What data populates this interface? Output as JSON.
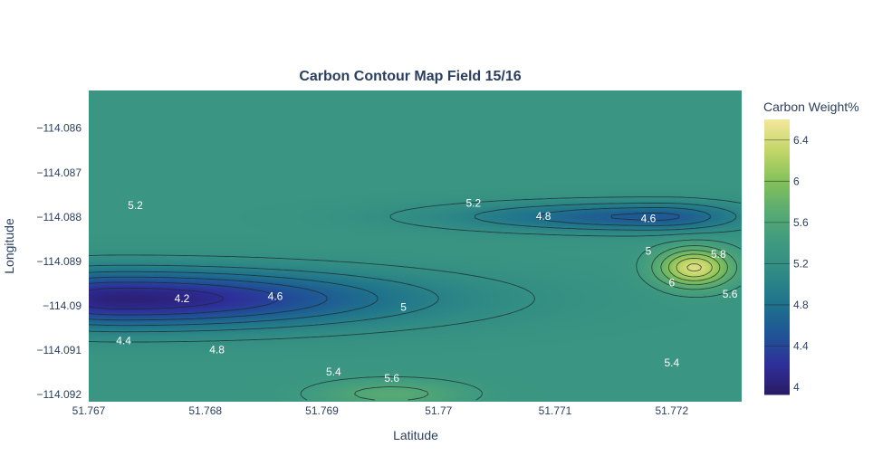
{
  "chart_data": {
    "type": "contour",
    "title": "Carbon Contour Map Field 15/16",
    "xlabel": "Latitude",
    "ylabel": "Longitude",
    "xlim": [
      51.767,
      51.7726
    ],
    "ylim": [
      -114.09216,
      -114.08515
    ],
    "x_ticks": [
      {
        "value": 51.767,
        "label": "51.767"
      },
      {
        "value": 51.768,
        "label": "51.768"
      },
      {
        "value": 51.769,
        "label": "51.769"
      },
      {
        "value": 51.77,
        "label": "51.77"
      },
      {
        "value": 51.771,
        "label": "51.771"
      },
      {
        "value": 51.772,
        "label": "51.772"
      }
    ],
    "y_ticks": [
      {
        "value": -114.086,
        "label": "−114.086"
      },
      {
        "value": -114.087,
        "label": "−114.087"
      },
      {
        "value": -114.088,
        "label": "−114.088"
      },
      {
        "value": -114.089,
        "label": "−114.089"
      },
      {
        "value": -114.09,
        "label": "−114.09"
      },
      {
        "value": -114.091,
        "label": "−114.091"
      },
      {
        "value": -114.092,
        "label": "−114.092"
      }
    ],
    "colorbar": {
      "title": "Carbon Weight%",
      "range": [
        3.93,
        6.6
      ],
      "ticks": [
        {
          "value": 4,
          "label": "4"
        },
        {
          "value": 4.4,
          "label": "4.4"
        },
        {
          "value": 4.8,
          "label": "4.8"
        },
        {
          "value": 5.2,
          "label": "5.2"
        },
        {
          "value": 5.6,
          "label": "5.6"
        },
        {
          "value": 6,
          "label": "6"
        },
        {
          "value": 6.4,
          "label": "6.4"
        }
      ],
      "colors": [
        "#2a1a67",
        "#2e2f9a",
        "#1f5596",
        "#1f738c",
        "#2f8a85",
        "#3f9a80",
        "#59ab72",
        "#84c159",
        "#c3d669",
        "#f3e79b"
      ]
    },
    "contour_levels": [
      4.0,
      4.2,
      4.4,
      4.6,
      4.8,
      5.0,
      5.2,
      5.4,
      5.6,
      5.8,
      6.0,
      6.2,
      6.4
    ],
    "background_value": 5.32,
    "features": [
      {
        "name": "low-west",
        "x": 51.7673,
        "y": -114.08985,
        "value": 4.03,
        "sx": 0.0009,
        "sy": 0.00045,
        "stretch_east": 1.8
      },
      {
        "name": "low-north",
        "x": 51.7719,
        "y": -114.088,
        "value": 4.55,
        "sx": 0.0005,
        "sy": 0.00023,
        "stretch_west": 2.4
      },
      {
        "name": "high-east",
        "x": 51.7722,
        "y": -114.08915,
        "value": 6.45,
        "sx": 0.00022,
        "sy": 0.0003
      },
      {
        "name": "high-south",
        "x": 51.7696,
        "y": -114.092,
        "value": 5.68,
        "sx": 0.00045,
        "sy": 0.00022
      }
    ],
    "contour_labels": [
      {
        "text": "5.2",
        "x": 51.7674,
        "y": -114.08775
      },
      {
        "text": "4.2",
        "x": 51.7678,
        "y": -114.08985
      },
      {
        "text": "4.6",
        "x": 51.7686,
        "y": -114.0898
      },
      {
        "text": "4.4",
        "x": 51.7673,
        "y": -114.0908
      },
      {
        "text": "4.8",
        "x": 51.7681,
        "y": -114.091
      },
      {
        "text": "5.4",
        "x": 51.7691,
        "y": -114.0915
      },
      {
        "text": "5.6",
        "x": 51.7696,
        "y": -114.09165
      },
      {
        "text": "5",
        "x": 51.7697,
        "y": -114.09005
      },
      {
        "text": "5.2",
        "x": 51.7703,
        "y": -114.0877
      },
      {
        "text": "4.8",
        "x": 51.7709,
        "y": -114.088
      },
      {
        "text": "4.6",
        "x": 51.7718,
        "y": -114.08805
      },
      {
        "text": "5",
        "x": 51.7718,
        "y": -114.08878
      },
      {
        "text": "5.8",
        "x": 51.7724,
        "y": -114.08885
      },
      {
        "text": "6",
        "x": 51.772,
        "y": -114.0895
      },
      {
        "text": "5.6",
        "x": 51.7725,
        "y": -114.08975
      },
      {
        "text": "5.4",
        "x": 51.772,
        "y": -114.0913
      }
    ]
  }
}
